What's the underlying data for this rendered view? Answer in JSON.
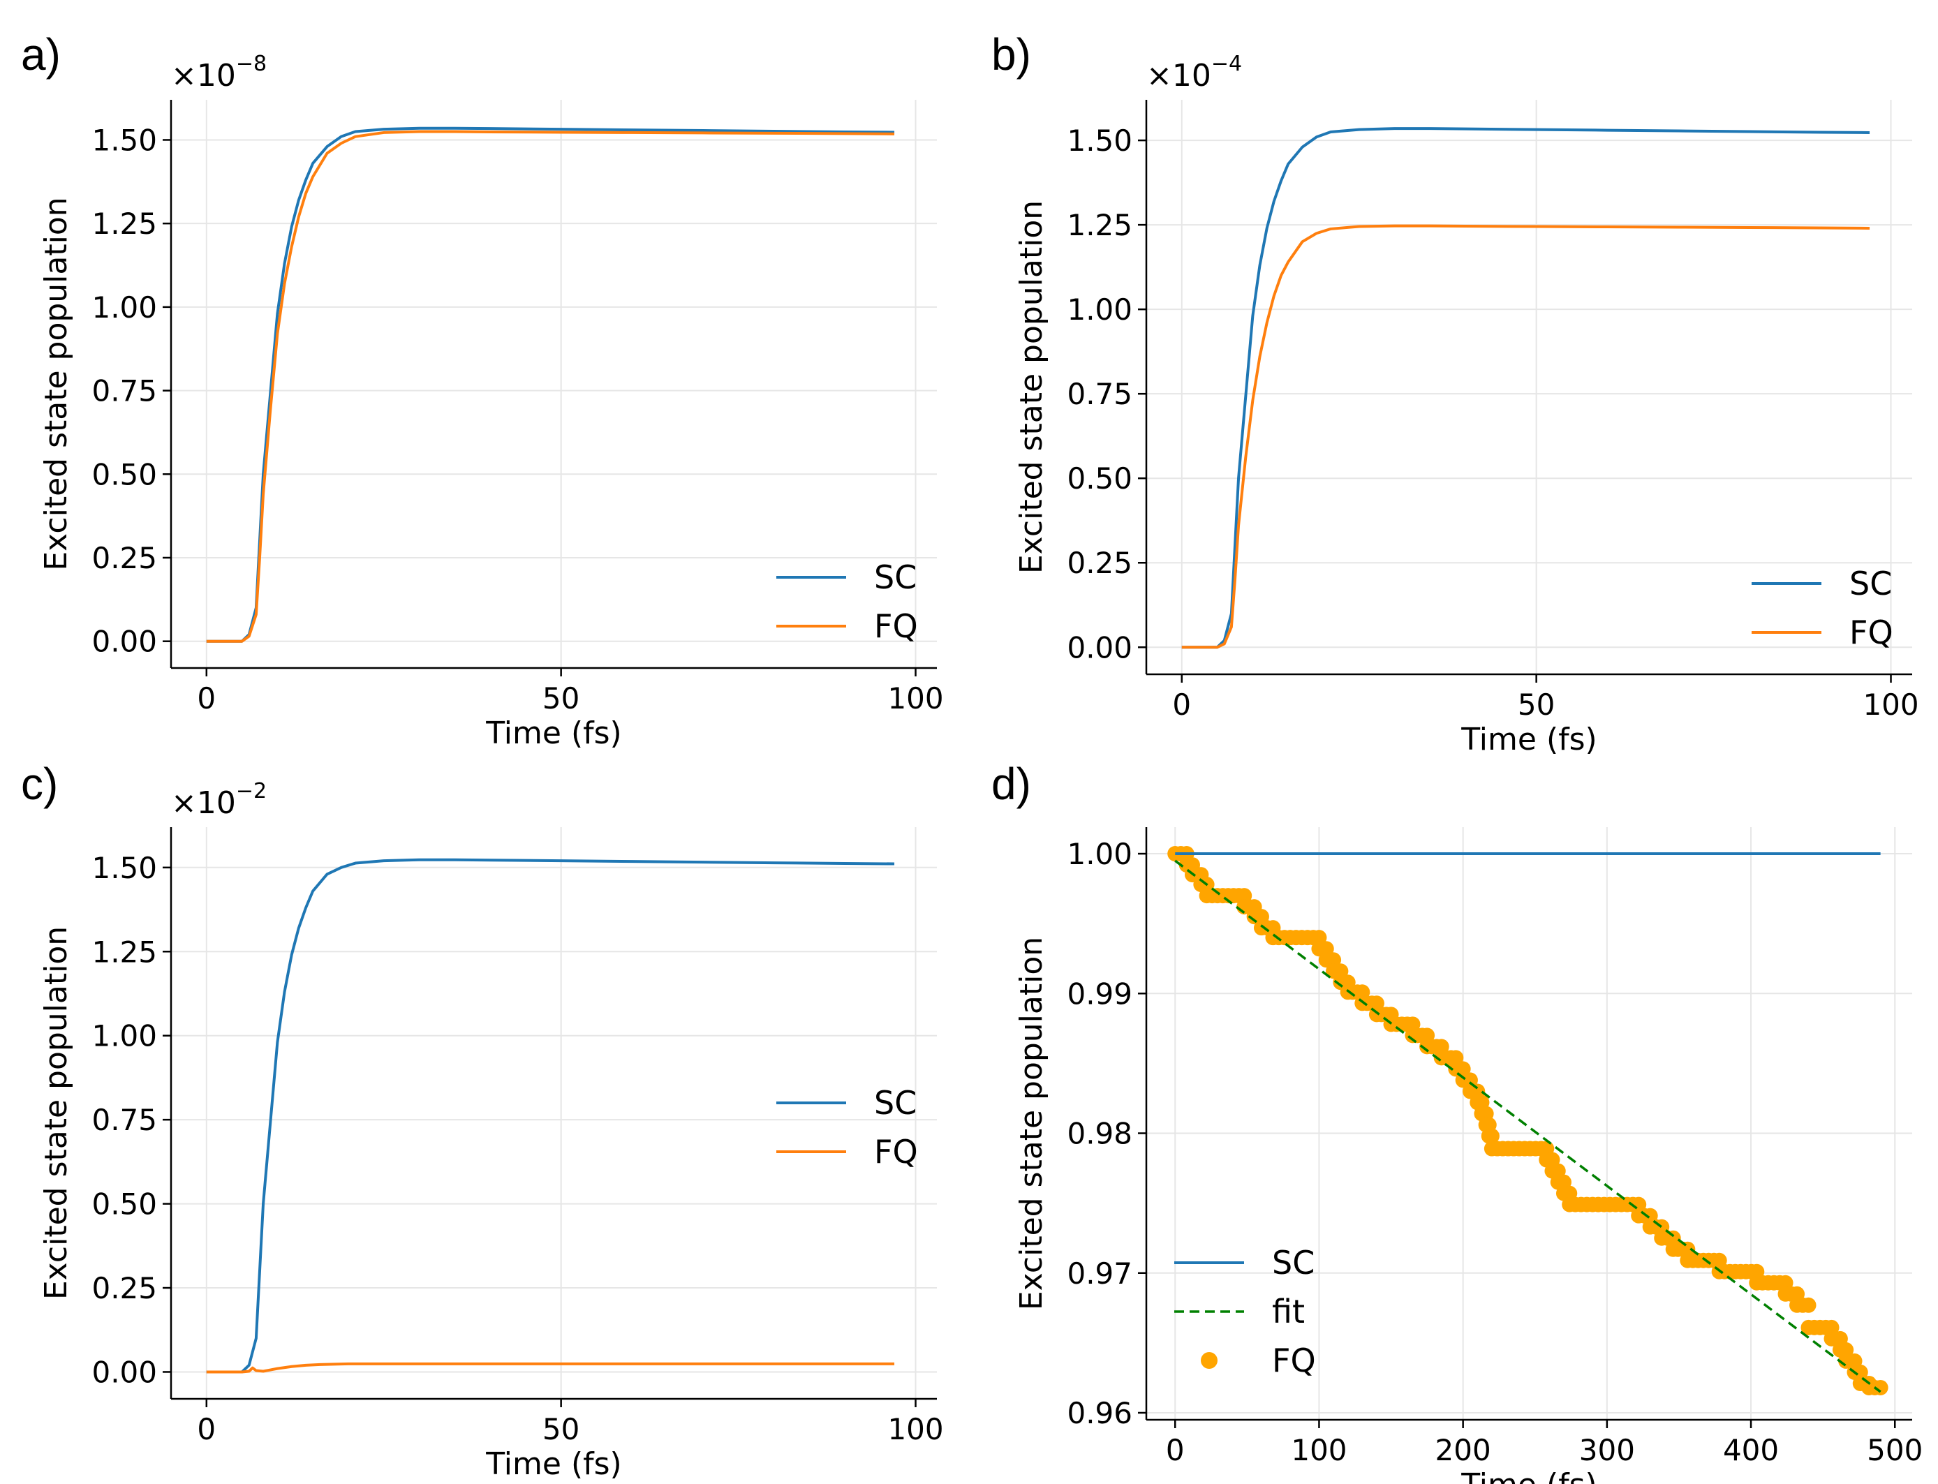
{
  "chart_data": [
    {
      "type": "line",
      "panel_label": "a)",
      "xlabel": "Time (fs)",
      "ylabel": "Excited state population",
      "multiplier": "×10",
      "multiplier_exp": "−8",
      "xlim": [
        -5,
        103
      ],
      "ylim": [
        -0.08,
        1.62
      ],
      "xticks": [
        0,
        50,
        100
      ],
      "xtick_labels": [
        "0",
        "50",
        "100"
      ],
      "yticks": [
        0,
        0.25,
        0.5,
        0.75,
        1.0,
        1.25,
        1.5
      ],
      "ytick_labels": [
        "0.00",
        "0.25",
        "0.50",
        "0.75",
        "1.00",
        "1.25",
        "1.50"
      ],
      "legend_position": "lower right",
      "series": [
        {
          "name": "SC",
          "color": "#1f77b4",
          "x": [
            0,
            5,
            6,
            7,
            7.5,
            8,
            9,
            10,
            11,
            12,
            13,
            14,
            15,
            17,
            19,
            21,
            25,
            30,
            35,
            40,
            50,
            60,
            70,
            80,
            90,
            97
          ],
          "y": [
            0,
            0,
            0.02,
            0.1,
            0.3,
            0.5,
            0.74,
            0.98,
            1.13,
            1.24,
            1.32,
            1.38,
            1.43,
            1.48,
            1.51,
            1.525,
            1.532,
            1.535,
            1.535,
            1.534,
            1.532,
            1.53,
            1.528,
            1.526,
            1.524,
            1.523
          ]
        },
        {
          "name": "FQ",
          "color": "#ff7f0e",
          "x": [
            0,
            5,
            6,
            7,
            7.5,
            8,
            9,
            10,
            11,
            12,
            13,
            14,
            15,
            17,
            19,
            21,
            25,
            30,
            35,
            40,
            50,
            60,
            70,
            80,
            90,
            97
          ],
          "y": [
            0,
            0,
            0.015,
            0.08,
            0.25,
            0.44,
            0.69,
            0.92,
            1.07,
            1.18,
            1.27,
            1.34,
            1.39,
            1.46,
            1.49,
            1.51,
            1.522,
            1.525,
            1.525,
            1.524,
            1.523,
            1.522,
            1.521,
            1.52,
            1.519,
            1.518
          ]
        }
      ]
    },
    {
      "type": "line",
      "panel_label": "b)",
      "xlabel": "Time (fs)",
      "ylabel": "Excited state population",
      "multiplier": "×10",
      "multiplier_exp": "−4",
      "xlim": [
        -5,
        103
      ],
      "ylim": [
        -0.08,
        1.62
      ],
      "xticks": [
        0,
        50,
        100
      ],
      "xtick_labels": [
        "0",
        "50",
        "100"
      ],
      "yticks": [
        0,
        0.25,
        0.5,
        0.75,
        1.0,
        1.25,
        1.5
      ],
      "ytick_labels": [
        "0.00",
        "0.25",
        "0.50",
        "0.75",
        "1.00",
        "1.25",
        "1.50"
      ],
      "legend_position": "lower right",
      "series": [
        {
          "name": "SC",
          "color": "#1f77b4",
          "x": [
            0,
            5,
            6,
            7,
            7.5,
            8,
            9,
            10,
            11,
            12,
            13,
            14,
            15,
            17,
            19,
            21,
            25,
            30,
            35,
            40,
            50,
            60,
            70,
            80,
            90,
            97
          ],
          "y": [
            0,
            0,
            0.02,
            0.1,
            0.3,
            0.5,
            0.74,
            0.98,
            1.13,
            1.24,
            1.32,
            1.38,
            1.43,
            1.48,
            1.51,
            1.525,
            1.532,
            1.535,
            1.535,
            1.534,
            1.532,
            1.53,
            1.528,
            1.526,
            1.524,
            1.523
          ]
        },
        {
          "name": "FQ",
          "color": "#ff7f0e",
          "x": [
            0,
            5,
            6,
            7,
            7.5,
            8,
            9,
            10,
            11,
            12,
            13,
            14,
            15,
            17,
            19,
            21,
            25,
            30,
            35,
            40,
            50,
            60,
            70,
            80,
            90,
            97
          ],
          "y": [
            0,
            0,
            0.01,
            0.06,
            0.2,
            0.36,
            0.56,
            0.73,
            0.86,
            0.96,
            1.04,
            1.1,
            1.14,
            1.2,
            1.225,
            1.238,
            1.245,
            1.247,
            1.247,
            1.246,
            1.245,
            1.244,
            1.243,
            1.242,
            1.241,
            1.24
          ]
        }
      ]
    },
    {
      "type": "line",
      "panel_label": "c)",
      "xlabel": "Time (fs)",
      "ylabel": "Excited state population",
      "multiplier": "×10",
      "multiplier_exp": "−2",
      "xlim": [
        -5,
        103
      ],
      "ylim": [
        -0.08,
        1.62
      ],
      "xticks": [
        0,
        50,
        100
      ],
      "xtick_labels": [
        "0",
        "50",
        "100"
      ],
      "yticks": [
        0,
        0.25,
        0.5,
        0.75,
        1.0,
        1.25,
        1.5
      ],
      "ytick_labels": [
        "0.00",
        "0.25",
        "0.50",
        "0.75",
        "1.00",
        "1.25",
        "1.50"
      ],
      "legend_position": "center right",
      "series": [
        {
          "name": "SC",
          "color": "#1f77b4",
          "x": [
            0,
            5,
            6,
            7,
            7.5,
            8,
            9,
            10,
            11,
            12,
            13,
            14,
            15,
            17,
            19,
            21,
            25,
            30,
            35,
            40,
            50,
            60,
            70,
            80,
            90,
            97
          ],
          "y": [
            0,
            0,
            0.02,
            0.1,
            0.3,
            0.5,
            0.74,
            0.98,
            1.13,
            1.24,
            1.32,
            1.38,
            1.43,
            1.48,
            1.5,
            1.513,
            1.52,
            1.523,
            1.523,
            1.522,
            1.52,
            1.518,
            1.516,
            1.514,
            1.512,
            1.511
          ]
        },
        {
          "name": "FQ",
          "color": "#ff7f0e",
          "x": [
            0,
            5,
            6,
            6.5,
            7,
            8,
            9,
            10,
            12,
            14,
            16,
            18,
            20,
            25,
            30,
            40,
            50,
            60,
            70,
            80,
            90,
            97
          ],
          "y": [
            0,
            0,
            0.002,
            0.012,
            0.004,
            0.002,
            0.006,
            0.01,
            0.016,
            0.02,
            0.022,
            0.023,
            0.024,
            0.024,
            0.024,
            0.024,
            0.024,
            0.024,
            0.024,
            0.024,
            0.024,
            0.024
          ]
        }
      ]
    },
    {
      "type": "scatter",
      "panel_label": "d)",
      "xlabel": "Time (fs)",
      "ylabel": "Excited state population",
      "xlim": [
        -20,
        512
      ],
      "ylim": [
        0.9595,
        1.0019
      ],
      "xticks": [
        0,
        100,
        200,
        300,
        400,
        500
      ],
      "xtick_labels": [
        "0",
        "100",
        "200",
        "300",
        "400",
        "500"
      ],
      "yticks": [
        0.96,
        0.97,
        0.98,
        0.99,
        1.0
      ],
      "ytick_labels": [
        "0.96",
        "0.97",
        "0.98",
        "0.99",
        "1.00"
      ],
      "legend_position": "lower left",
      "sc_line": {
        "name": "SC",
        "color": "#1f77b4",
        "x": [
          0,
          490
        ],
        "y": [
          1.0,
          1.0
        ]
      },
      "fit_line": {
        "name": "fit",
        "color": "#008000",
        "x": [
          0,
          490
        ],
        "y": [
          0.9995,
          0.9615
        ]
      },
      "fq_points": {
        "name": "FQ",
        "color": "#ffa500",
        "steps": [
          {
            "x0": 0,
            "x1": 8,
            "y": 1.0
          },
          {
            "x0": 8,
            "x1": 12,
            "y": 0.9992
          },
          {
            "x0": 12,
            "x1": 18,
            "y": 0.9985
          },
          {
            "x0": 18,
            "x1": 22,
            "y": 0.9978
          },
          {
            "x0": 22,
            "x1": 48,
            "y": 0.997
          },
          {
            "x0": 48,
            "x1": 55,
            "y": 0.9962
          },
          {
            "x0": 55,
            "x1": 60,
            "y": 0.9955
          },
          {
            "x0": 60,
            "x1": 68,
            "y": 0.9947
          },
          {
            "x0": 68,
            "x1": 100,
            "y": 0.994
          },
          {
            "x0": 100,
            "x1": 105,
            "y": 0.9932
          },
          {
            "x0": 105,
            "x1": 110,
            "y": 0.9924
          },
          {
            "x0": 110,
            "x1": 115,
            "y": 0.9916
          },
          {
            "x0": 115,
            "x1": 120,
            "y": 0.9908
          },
          {
            "x0": 120,
            "x1": 130,
            "y": 0.9901
          },
          {
            "x0": 130,
            "x1": 140,
            "y": 0.9893
          },
          {
            "x0": 140,
            "x1": 150,
            "y": 0.9885
          },
          {
            "x0": 150,
            "x1": 165,
            "y": 0.9878
          },
          {
            "x0": 165,
            "x1": 175,
            "y": 0.987
          },
          {
            "x0": 175,
            "x1": 185,
            "y": 0.9862
          },
          {
            "x0": 185,
            "x1": 195,
            "y": 0.9854
          },
          {
            "x0": 195,
            "x1": 200,
            "y": 0.9846
          },
          {
            "x0": 200,
            "x1": 205,
            "y": 0.9838
          },
          {
            "x0": 205,
            "x1": 210,
            "y": 0.983
          },
          {
            "x0": 210,
            "x1": 213,
            "y": 0.9822
          },
          {
            "x0": 213,
            "x1": 216,
            "y": 0.9814
          },
          {
            "x0": 216,
            "x1": 218,
            "y": 0.9806
          },
          {
            "x0": 218,
            "x1": 220,
            "y": 0.9798
          },
          {
            "x0": 220,
            "x1": 258,
            "y": 0.9789
          },
          {
            "x0": 258,
            "x1": 262,
            "y": 0.9781
          },
          {
            "x0": 262,
            "x1": 266,
            "y": 0.9773
          },
          {
            "x0": 266,
            "x1": 270,
            "y": 0.9765
          },
          {
            "x0": 270,
            "x1": 274,
            "y": 0.9757
          },
          {
            "x0": 274,
            "x1": 322,
            "y": 0.9749
          },
          {
            "x0": 322,
            "x1": 330,
            "y": 0.9741
          },
          {
            "x0": 330,
            "x1": 338,
            "y": 0.9733
          },
          {
            "x0": 338,
            "x1": 346,
            "y": 0.9725
          },
          {
            "x0": 346,
            "x1": 356,
            "y": 0.9717
          },
          {
            "x0": 356,
            "x1": 378,
            "y": 0.9709
          },
          {
            "x0": 378,
            "x1": 404,
            "y": 0.9701
          },
          {
            "x0": 404,
            "x1": 424,
            "y": 0.9693
          },
          {
            "x0": 424,
            "x1": 432,
            "y": 0.9685
          },
          {
            "x0": 432,
            "x1": 440,
            "y": 0.9677
          },
          {
            "x0": 440,
            "x1": 456,
            "y": 0.9661
          },
          {
            "x0": 456,
            "x1": 462,
            "y": 0.9653
          },
          {
            "x0": 462,
            "x1": 466,
            "y": 0.9645
          },
          {
            "x0": 466,
            "x1": 472,
            "y": 0.9637
          },
          {
            "x0": 472,
            "x1": 476,
            "y": 0.9629
          },
          {
            "x0": 476,
            "x1": 482,
            "y": 0.9621
          },
          {
            "x0": 482,
            "x1": 490,
            "y": 0.9618
          }
        ]
      }
    }
  ]
}
